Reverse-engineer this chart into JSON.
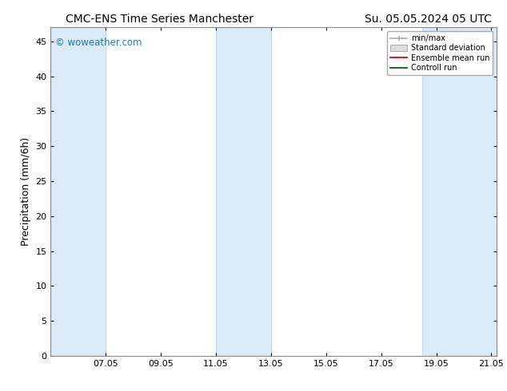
{
  "title_left": "CMC-ENS Time Series Manchester",
  "title_right": "Su. 05.05.2024 05 UTC",
  "ylabel": "Precipitation (mm/6h)",
  "watermark": "© woweather.com",
  "background_color": "#ffffff",
  "plot_bg_color": "#ffffff",
  "ylim": [
    0,
    47
  ],
  "yticks": [
    0,
    5,
    10,
    15,
    20,
    25,
    30,
    35,
    40,
    45
  ],
  "x_tick_positions": [
    7,
    9,
    11,
    13,
    15,
    17,
    19,
    21
  ],
  "x_tick_labels": [
    "07.05",
    "09.05",
    "11.05",
    "13.05",
    "15.05",
    "17.05",
    "19.05",
    "21.05"
  ],
  "xlim": [
    5.0,
    21.2
  ],
  "shaded_bands": [
    {
      "x_start": 5.0,
      "x_end": 7.0
    },
    {
      "x_start": 11.0,
      "x_end": 13.0
    },
    {
      "x_start": 18.5,
      "x_end": 21.2
    }
  ],
  "shade_color": "#daeaf7",
  "shade_edge_color": "#b8d4e8",
  "legend_labels": [
    "min/max",
    "Standard deviation",
    "Ensemble mean run",
    "Controll run"
  ],
  "title_fontsize": 10,
  "axis_label_fontsize": 9,
  "tick_fontsize": 8,
  "watermark_color": "#1a7abf",
  "border_color": "#888888"
}
